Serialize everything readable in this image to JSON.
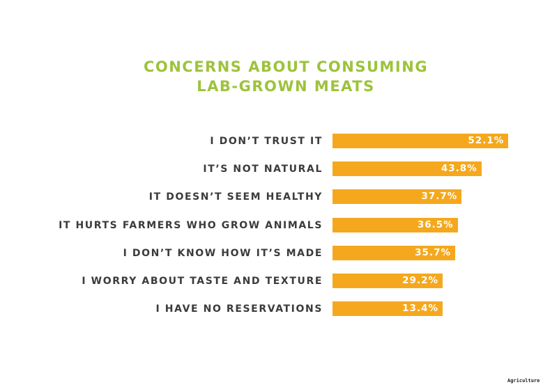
{
  "chart_data": {
    "type": "bar",
    "orientation": "horizontal",
    "title": "CONCERNS ABOUT CONSUMING LAB-GROWN MEATS",
    "title_lines": [
      "CONCERNS ABOUT CONSUMING",
      "LAB-GROWN MEATS"
    ],
    "categories": [
      "I DON’T TRUST IT",
      "IT’S NOT NATURAL",
      "IT DOESN’T SEEM HEALTHY",
      "IT HURTS FARMERS WHO GROW ANIMALS",
      "I DON’T KNOW HOW IT’S MADE",
      "I WORRY ABOUT TASTE AND TEXTURE",
      "I HAVE NO RESERVATIONS"
    ],
    "values": [
      52.1,
      43.8,
      37.7,
      36.5,
      35.7,
      29.2,
      13.4
    ],
    "labels": [
      "52.1%",
      "43.8%",
      "37.7%",
      "36.5%",
      "35.7%",
      "29.2%",
      "13.4%"
    ],
    "unit": "%",
    "grid": false,
    "colors": {
      "bar": "#f5a81d",
      "title": "#9dc33b",
      "text": "#3b3b3b"
    }
  },
  "footer": {
    "source": "Agriculture"
  }
}
